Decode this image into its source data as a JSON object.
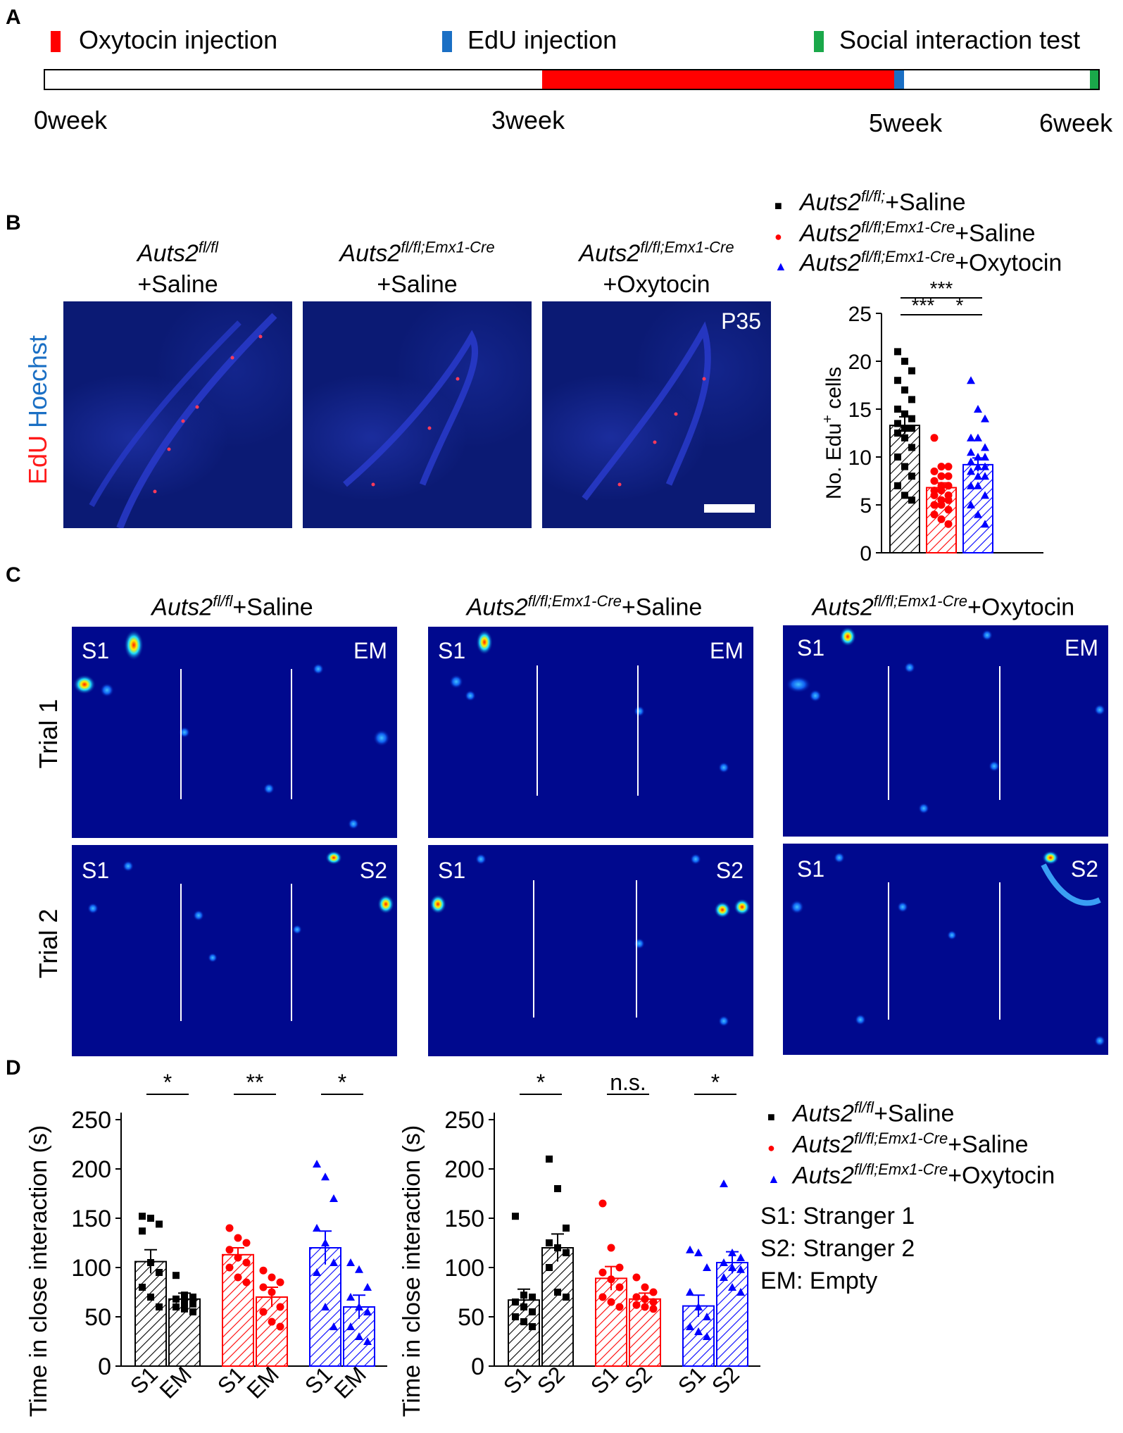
{
  "panels": {
    "a": "A",
    "b": "B",
    "c": "C",
    "d": "D"
  },
  "timeline": {
    "legend": [
      {
        "label": "Oxytocin injection",
        "color": "#ff0000"
      },
      {
        "label": "EdU injection",
        "color": "#1a6fc4"
      },
      {
        "label": "Social interaction test",
        "color": "#1aa84a"
      }
    ],
    "ticks": [
      "0week",
      "3week",
      "5week",
      "6week"
    ]
  },
  "groups": {
    "g1": {
      "base": "Auts2",
      "sup": "fl/fl",
      "rest": "+Saline"
    },
    "g2": {
      "base": "Auts2",
      "sup": "fl/fl;Emx1-Cre",
      "rest": "+Saline"
    },
    "g3": {
      "base": "Auts2",
      "sup": "fl/fl;Emx1-Cre",
      "rest": "+Oxytocin"
    }
  },
  "legend_b": {
    "g1": {
      "base": "Auts2",
      "sup": "fl/fl;",
      "rest": "+Saline",
      "color": "#000000",
      "marker": "■"
    },
    "g2": {
      "base": "Auts2",
      "sup": "fl/fl;Emx1-Cre",
      "rest": "+Saline",
      "color": "#ff0000",
      "marker": "●"
    },
    "g3": {
      "base": "Auts2",
      "sup": "fl/fl;Emx1-Cre",
      "rest": "+Oxytocin",
      "color": "#0000ff",
      "marker": "▲"
    }
  },
  "micro": {
    "stain1": "EdU",
    "stain2": "Hoechst",
    "age": "P35"
  },
  "heatmap": {
    "trial1": "Trial 1",
    "trial2": "Trial 2",
    "s1": "S1",
    "s2": "S2",
    "em": "EM"
  },
  "colors": {
    "g1": "#000000",
    "g2": "#ff0000",
    "g3": "#0000ff"
  },
  "chart_data": [
    {
      "type": "bar",
      "panel": "B",
      "ylabel_main": "No. Edu",
      "ylabel_sup": "+",
      "ylabel_tail": " cells",
      "ylim": [
        0,
        25
      ],
      "yticks": [
        0,
        5,
        10,
        15,
        20,
        25
      ],
      "categories": [
        "Auts2fl/fl;+Saline",
        "Auts2fl/fl;Emx1-Cre+Saline",
        "Auts2fl/fl;Emx1-Cre+Oxytocin"
      ],
      "values": [
        13.3,
        6.8,
        9.2
      ],
      "errors": [
        0.9,
        0.5,
        0.7
      ],
      "points": [
        [
          21,
          20,
          19,
          18,
          17,
          16,
          15,
          14.5,
          14,
          13.5,
          13,
          13,
          12.5,
          12,
          11,
          10,
          9,
          8,
          7,
          6,
          5.5
        ],
        [
          12,
          9,
          9,
          8.5,
          8,
          8,
          7.5,
          7,
          7,
          6.5,
          6.5,
          6,
          6,
          5.5,
          5.5,
          5,
          5,
          4.5,
          4,
          3.5,
          3
        ],
        [
          18,
          15,
          14,
          12,
          12,
          11,
          10.5,
          10,
          10,
          9.5,
          9,
          9,
          8.5,
          8,
          8,
          7,
          7,
          6,
          5,
          4,
          3
        ]
      ],
      "significance": [
        {
          "pair": [
            0,
            2
          ],
          "label": "***"
        },
        {
          "pair": [
            0,
            1
          ],
          "label": "***"
        },
        {
          "pair": [
            1,
            2
          ],
          "label": "*"
        }
      ]
    },
    {
      "type": "bar",
      "panel": "D-left",
      "ylabel": "Time in close interaction (s)",
      "ylim": [
        0,
        250
      ],
      "yticks": [
        0,
        50,
        100,
        150,
        200,
        250
      ],
      "categories": [
        "S1",
        "EM",
        "S1",
        "EM",
        "S1",
        "EM"
      ],
      "groups": [
        "g1",
        "g1",
        "g2",
        "g2",
        "g3",
        "g3"
      ],
      "values": [
        106,
        68,
        113,
        70,
        120,
        60
      ],
      "errors": [
        12,
        6,
        7,
        10,
        17,
        12
      ],
      "points": [
        [
          152,
          150,
          144,
          137,
          105,
          95,
          80,
          70,
          60
        ],
        [
          92,
          72,
          70,
          68,
          65,
          63,
          60,
          58,
          55
        ],
        [
          140,
          130,
          125,
          118,
          110,
          105,
          100,
          90,
          85
        ],
        [
          97,
          90,
          85,
          80,
          75,
          60,
          55,
          45,
          40
        ],
        [
          205,
          192,
          170,
          140,
          125,
          105,
          95,
          60,
          40
        ],
        [
          105,
          98,
          80,
          70,
          60,
          55,
          40,
          30,
          25
        ]
      ],
      "significance": [
        {
          "pair": [
            0,
            1
          ],
          "label": "*"
        },
        {
          "pair": [
            2,
            3
          ],
          "label": "**"
        },
        {
          "pair": [
            4,
            5
          ],
          "label": "*"
        }
      ]
    },
    {
      "type": "bar",
      "panel": "D-right",
      "ylabel": "Time in close interaction (s)",
      "ylim": [
        0,
        250
      ],
      "yticks": [
        0,
        50,
        100,
        150,
        200,
        250
      ],
      "categories": [
        "S1",
        "S2",
        "S1",
        "S2",
        "S1",
        "S2"
      ],
      "groups": [
        "g1",
        "g1",
        "g2",
        "g2",
        "g3",
        "g3"
      ],
      "values": [
        67,
        120,
        89,
        68,
        61,
        105
      ],
      "errors": [
        11,
        14,
        12,
        6,
        11,
        11
      ],
      "points": [
        [
          152,
          72,
          70,
          65,
          60,
          55,
          50,
          45,
          40
        ],
        [
          210,
          180,
          140,
          125,
          120,
          115,
          100,
          75,
          70
        ],
        [
          165,
          120,
          100,
          95,
          88,
          80,
          70,
          65,
          60
        ],
        [
          90,
          80,
          75,
          70,
          68,
          65,
          62,
          60,
          58
        ],
        [
          118,
          115,
          100,
          75,
          60,
          50,
          40,
          35,
          30
        ],
        [
          185,
          115,
          110,
          105,
          100,
          98,
          90,
          80,
          75
        ]
      ],
      "significance": [
        {
          "pair": [
            0,
            1
          ],
          "label": "*"
        },
        {
          "pair": [
            2,
            3
          ],
          "label": "n.s."
        },
        {
          "pair": [
            4,
            5
          ],
          "label": "*"
        }
      ]
    }
  ],
  "legend_d": {
    "g1": {
      "base": "Auts2",
      "sup": "fl/fl",
      "rest": "+Saline",
      "color": "#000000",
      "marker": "■"
    },
    "g2": {
      "base": "Auts2",
      "sup": "fl/fl;Emx1-Cre",
      "rest": "+Saline",
      "color": "#ff0000",
      "marker": "●"
    },
    "g3": {
      "base": "Auts2",
      "sup": "fl/fl;Emx1-Cre",
      "rest": "+Oxytocin",
      "color": "#0000ff",
      "marker": "▲"
    },
    "key1": "S1: Stranger 1",
    "key2": "S2: Stranger 2",
    "key3": "EM: Empty"
  }
}
